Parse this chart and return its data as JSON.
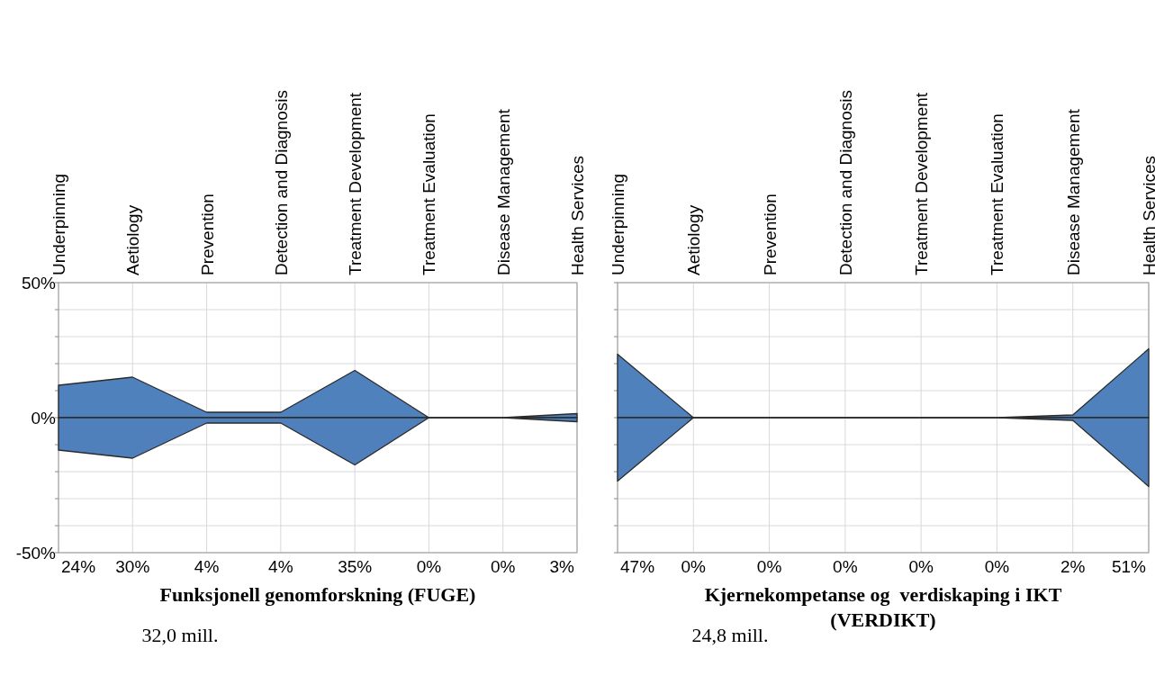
{
  "chart_data": [
    {
      "type": "area",
      "categories": [
        "Underpinning",
        "Aetiology",
        "Prevention",
        "Detection and Diagnosis",
        "Treatment Development",
        "Treatment Evaluation",
        "Disease Management",
        "Health Services"
      ],
      "xlabel": "Funksjonell genomforskning (FUGE)",
      "annotations": [
        "24%",
        "30%",
        "4%",
        "4%",
        "35%",
        "0%",
        "0%",
        "3%",
        "32,0 mill."
      ],
      "series": [
        {
          "color": "#4f81bd",
          "values": [
            12,
            15,
            2,
            2,
            17.5,
            0,
            0,
            1.5
          ]
        },
        {
          "color": "#4f80bc",
          "values": [
            -12,
            -15,
            -2,
            -2,
            -17.5,
            0,
            0,
            -1.5
          ]
        }
      ],
      "ylim": [
        -50,
        50
      ],
      "yticks": [
        {
          "value": -50,
          "label": "-50%"
        },
        {
          "value": -40,
          "label": null
        },
        {
          "value": -30,
          "label": null
        },
        {
          "value": -20,
          "label": null
        },
        {
          "value": -10,
          "label": null
        },
        {
          "value": 0,
          "label": "0%"
        },
        {
          "value": 10,
          "label": null
        },
        {
          "value": 20,
          "label": null
        },
        {
          "value": 30,
          "label": null
        },
        {
          "value": 40,
          "label": null
        },
        {
          "value": 50,
          "label": "50%"
        }
      ],
      "grid": true
    },
    {
      "type": "area",
      "categories": [
        "Underpinning",
        "Aetiology",
        "Prevention",
        "Detection and Diagnosis",
        "Treatment Development",
        "Treatment Evaluation",
        "Disease Management",
        "Health Services"
      ],
      "xlabel": "Kjernekompetanse og  verdiskaping i IKT (VERDIKT)",
      "annotations": [
        "47%",
        "0%",
        "0%",
        "0%",
        "0%",
        "0%",
        "2%",
        "51%",
        "24,8 mill."
      ],
      "series": [
        {
          "color": "#4f81bd",
          "values": [
            23.5,
            0,
            0,
            0,
            0,
            0,
            1,
            25.5
          ]
        },
        {
          "color": "#4f80bc",
          "values": [
            -23.5,
            0,
            0,
            0,
            0,
            0,
            -1,
            -25.5
          ]
        }
      ],
      "ylim": [
        -50,
        50
      ],
      "yticks": [
        {
          "value": -50,
          "label": null
        },
        {
          "value": -40,
          "label": null
        },
        {
          "value": -30,
          "label": null
        },
        {
          "value": -20,
          "label": null
        },
        {
          "value": -10,
          "label": null
        },
        {
          "value": 0,
          "label": null
        },
        {
          "value": 10,
          "label": null
        },
        {
          "value": 20,
          "label": null
        },
        {
          "value": 30,
          "label": null
        },
        {
          "value": 40,
          "label": null
        },
        {
          "value": 50,
          "label": null
        }
      ],
      "grid": true,
      "tick_labels": "x"
    }
  ]
}
